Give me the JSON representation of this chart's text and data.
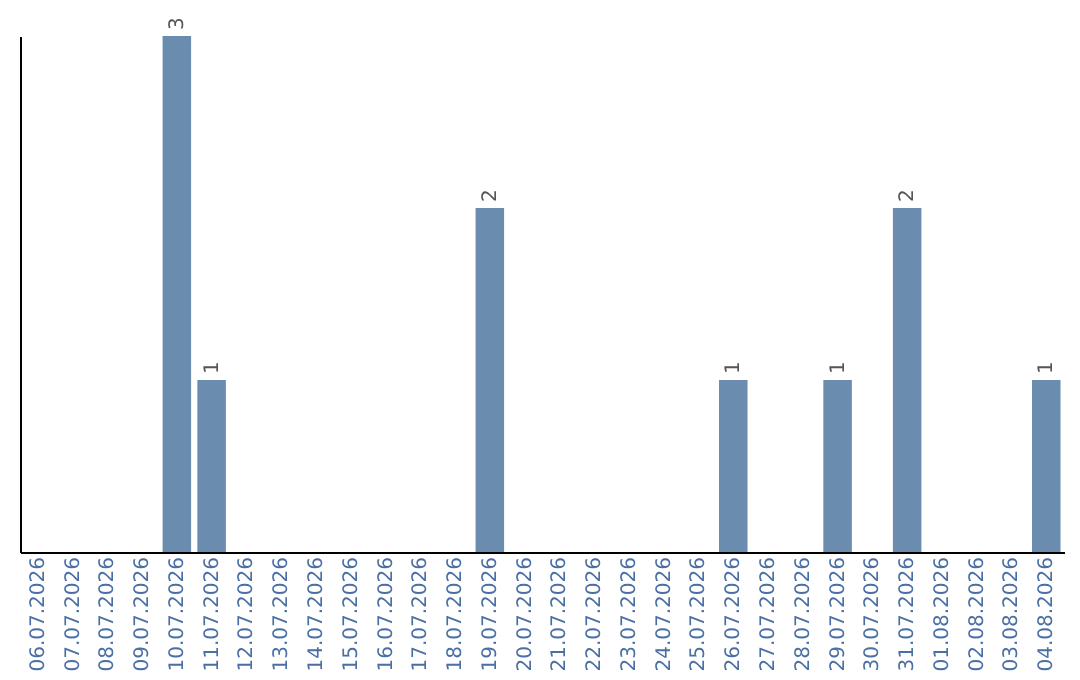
{
  "chart_data": {
    "type": "bar",
    "categories": [
      "06.07.2026",
      "07.07.2026",
      "08.07.2026",
      "09.07.2026",
      "10.07.2026",
      "11.07.2026",
      "12.07.2026",
      "13.07.2026",
      "14.07.2026",
      "15.07.2026",
      "16.07.2026",
      "17.07.2026",
      "18.07.2026",
      "19.07.2026",
      "20.07.2026",
      "21.07.2026",
      "22.07.2026",
      "23.07.2026",
      "24.07.2026",
      "25.07.2026",
      "26.07.2026",
      "27.07.2026",
      "28.07.2026",
      "29.07.2026",
      "30.07.2026",
      "31.07.2026",
      "01.08.2026",
      "02.08.2026",
      "03.08.2026",
      "04.08.2026"
    ],
    "values": [
      0,
      0,
      0,
      0,
      3,
      1,
      0,
      0,
      0,
      0,
      0,
      0,
      0,
      2,
      0,
      0,
      0,
      0,
      0,
      0,
      1,
      0,
      0,
      1,
      0,
      2,
      0,
      0,
      0,
      1
    ],
    "value_labels": [
      null,
      null,
      null,
      null,
      "3",
      "1",
      null,
      null,
      null,
      null,
      null,
      null,
      null,
      "2",
      null,
      null,
      null,
      null,
      null,
      null,
      "1",
      null,
      null,
      "1",
      null,
      "2",
      null,
      null,
      null,
      "1"
    ],
    "color": "#6a8caf"
  }
}
